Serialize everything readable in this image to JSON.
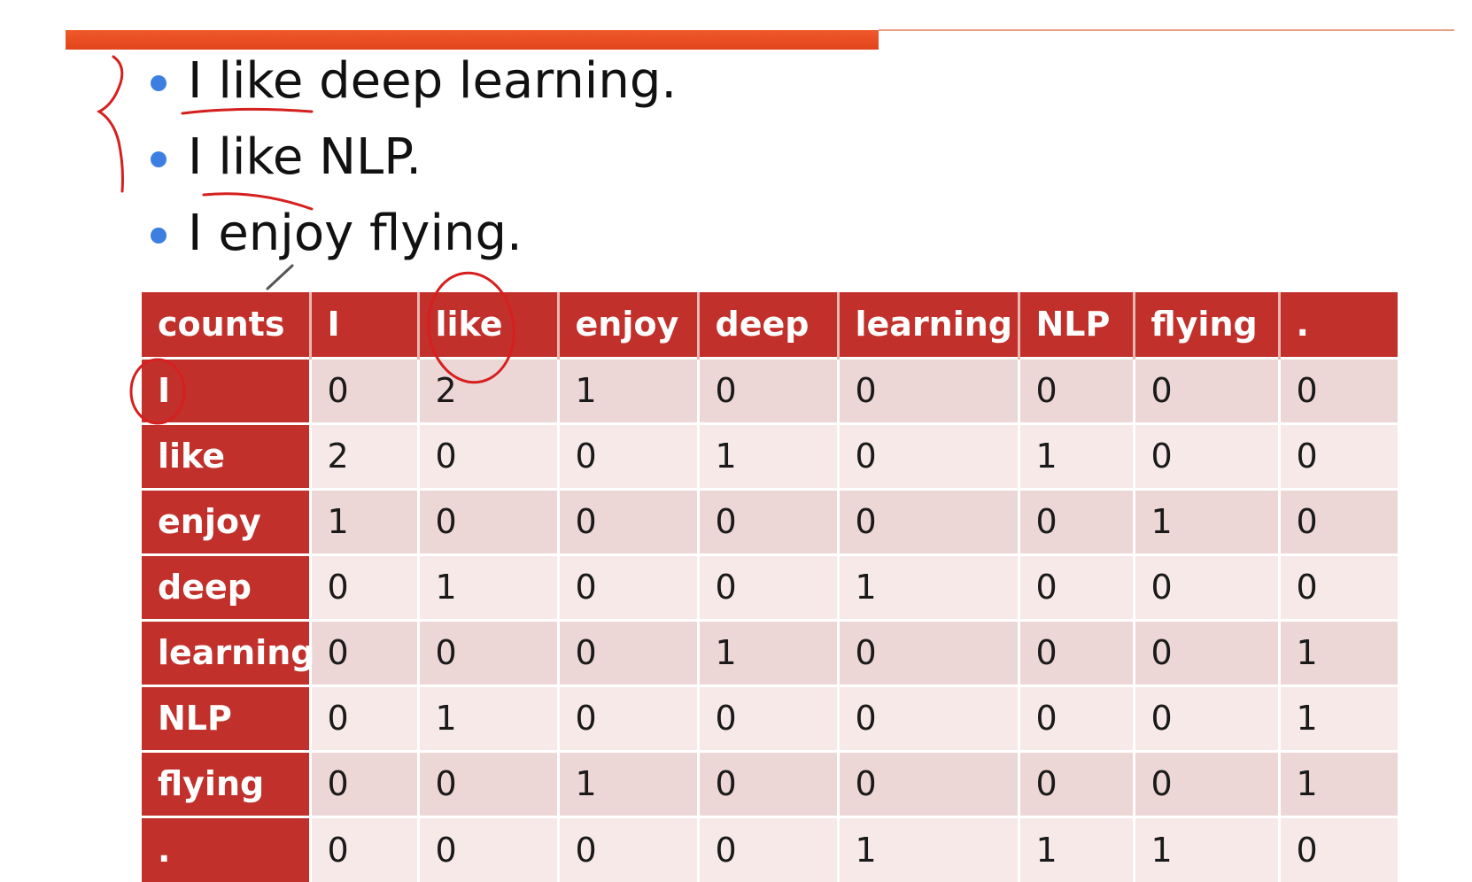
{
  "slide": {
    "accent_color": "#e2441b",
    "bullet_color": "#3d7fe0",
    "header_color": "#c1302b",
    "annotation_color": "#d6201f"
  },
  "bullets": [
    "I like deep learning.",
    "I like NLP.",
    "I enjoy flying."
  ],
  "table": {
    "corner": "counts",
    "columns": [
      "I",
      "like",
      "enjoy",
      "deep",
      "learning",
      "NLP",
      "flying",
      "."
    ],
    "rows": [
      {
        "label": "I",
        "values": [
          "0",
          "2",
          "1",
          "0",
          "0",
          "0",
          "0",
          "0"
        ]
      },
      {
        "label": "like",
        "values": [
          "2",
          "0",
          "0",
          "1",
          "0",
          "1",
          "0",
          "0"
        ]
      },
      {
        "label": "enjoy",
        "values": [
          "1",
          "0",
          "0",
          "0",
          "0",
          "0",
          "1",
          "0"
        ]
      },
      {
        "label": "deep",
        "values": [
          "0",
          "1",
          "0",
          "0",
          "1",
          "0",
          "0",
          "0"
        ]
      },
      {
        "label": "learning",
        "values": [
          "0",
          "0",
          "0",
          "1",
          "0",
          "0",
          "0",
          "1"
        ]
      },
      {
        "label": "NLP",
        "values": [
          "0",
          "1",
          "0",
          "0",
          "0",
          "0",
          "0",
          "1"
        ]
      },
      {
        "label": "flying",
        "values": [
          "0",
          "0",
          "1",
          "0",
          "0",
          "0",
          "0",
          "1"
        ]
      },
      {
        "label": ".",
        "values": [
          "0",
          "0",
          "0",
          "0",
          "1",
          "1",
          "1",
          "0"
        ]
      }
    ]
  }
}
